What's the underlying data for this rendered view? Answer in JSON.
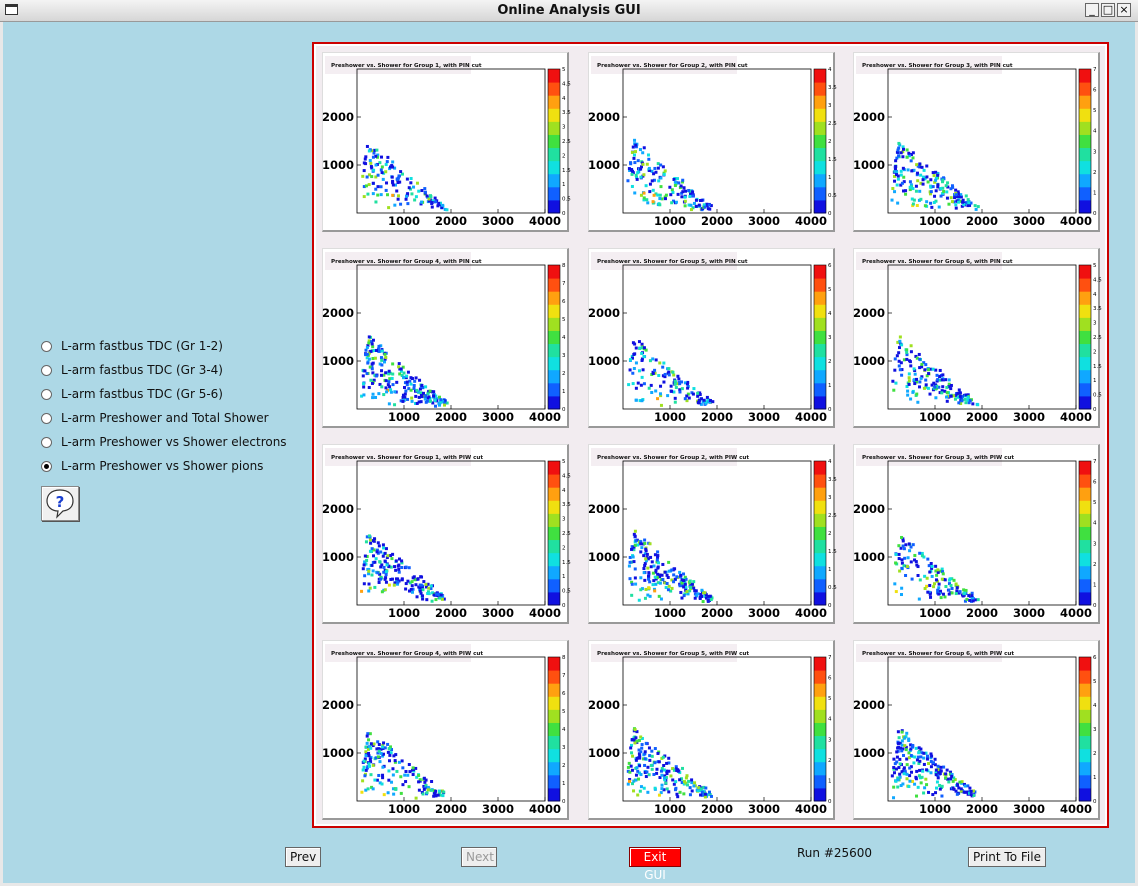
{
  "window": {
    "title": "Online Analysis GUI",
    "buttons": [
      "_",
      "□",
      "×"
    ]
  },
  "icons": {
    "window": "window-icon",
    "help": "help-question-icon"
  },
  "options": [
    {
      "label": "L-arm fastbus TDC (Gr 1-2)",
      "selected": false
    },
    {
      "label": "L-arm fastbus TDC (Gr 3-4)",
      "selected": false
    },
    {
      "label": "L-arm fastbus TDC (Gr 5-6)",
      "selected": false
    },
    {
      "label": "L-arm Preshower and Total Shower",
      "selected": false
    },
    {
      "label": "L-arm Preshower vs Shower electrons",
      "selected": false
    },
    {
      "label": "L-arm Preshower vs Shower pions",
      "selected": true
    }
  ],
  "colors": {
    "background": "#add8e6",
    "frame": "#cc0000",
    "exit": "#ff0000"
  },
  "chart_data": [
    {
      "type": "heatmap",
      "title": "Preshower vs. Shower for Group 1, with PIN cut",
      "xticks": [
        "1000",
        "2000",
        "3000",
        "4000"
      ],
      "yticks": [
        "1000",
        "2000"
      ],
      "xlim": [
        0,
        4000
      ],
      "ylim": [
        0,
        3000
      ],
      "zticks": [
        "0",
        "0.5",
        "1",
        "1.5",
        "2",
        "2.5",
        "3",
        "3.5",
        "4",
        "4.5",
        "5"
      ]
    },
    {
      "type": "heatmap",
      "title": "Preshower vs. Shower for Group 2, with PIN cut",
      "xticks": [
        "1000",
        "2000",
        "3000",
        "4000"
      ],
      "yticks": [
        "1000",
        "2000"
      ],
      "xlim": [
        0,
        4000
      ],
      "ylim": [
        0,
        3000
      ],
      "zticks": [
        "0",
        "0.5",
        "1",
        "1.5",
        "2",
        "2.5",
        "3",
        "3.5",
        "4"
      ]
    },
    {
      "type": "heatmap",
      "title": "Preshower vs. Shower for Group 3, with PIN cut",
      "xticks": [
        "1000",
        "2000",
        "3000",
        "4000"
      ],
      "yticks": [
        "1000",
        "2000"
      ],
      "xlim": [
        0,
        4000
      ],
      "ylim": [
        0,
        3000
      ],
      "zticks": [
        "0",
        "1",
        "2",
        "3",
        "4",
        "5",
        "6",
        "7"
      ]
    },
    {
      "type": "heatmap",
      "title": "Preshower vs. Shower for Group 4, with PIN cut",
      "xticks": [
        "1000",
        "2000",
        "3000",
        "4000"
      ],
      "yticks": [
        "1000",
        "2000"
      ],
      "xlim": [
        0,
        4000
      ],
      "ylim": [
        0,
        3000
      ],
      "zticks": [
        "0",
        "1",
        "2",
        "3",
        "4",
        "5",
        "6",
        "7",
        "8"
      ]
    },
    {
      "type": "heatmap",
      "title": "Preshower vs. Shower for Group 5, with PIN cut",
      "xticks": [
        "1000",
        "2000",
        "3000",
        "4000"
      ],
      "yticks": [
        "1000",
        "2000"
      ],
      "xlim": [
        0,
        4000
      ],
      "ylim": [
        0,
        3000
      ],
      "zticks": [
        "0",
        "1",
        "2",
        "3",
        "4",
        "5",
        "6"
      ]
    },
    {
      "type": "heatmap",
      "title": "Preshower vs. Shower for Group 6, with PIN cut",
      "xticks": [
        "1000",
        "2000",
        "3000",
        "4000"
      ],
      "yticks": [
        "1000",
        "2000"
      ],
      "xlim": [
        0,
        4000
      ],
      "ylim": [
        0,
        3000
      ],
      "zticks": [
        "0",
        "0.5",
        "1",
        "1.5",
        "2",
        "2.5",
        "3",
        "3.5",
        "4",
        "4.5",
        "5"
      ]
    },
    {
      "type": "heatmap",
      "title": "Preshower vs. Shower for Group 1, with PIW cut",
      "xticks": [
        "1000",
        "2000",
        "3000",
        "4000"
      ],
      "yticks": [
        "1000",
        "2000"
      ],
      "xlim": [
        0,
        4000
      ],
      "ylim": [
        0,
        3000
      ],
      "zticks": [
        "0",
        "0.5",
        "1",
        "1.5",
        "2",
        "2.5",
        "3",
        "3.5",
        "4",
        "4.5",
        "5"
      ]
    },
    {
      "type": "heatmap",
      "title": "Preshower vs. Shower for Group 2, with PIW cut",
      "xticks": [
        "1000",
        "2000",
        "3000",
        "4000"
      ],
      "yticks": [
        "1000",
        "2000"
      ],
      "xlim": [
        0,
        4000
      ],
      "ylim": [
        0,
        3000
      ],
      "zticks": [
        "0",
        "0.5",
        "1",
        "1.5",
        "2",
        "2.5",
        "3",
        "3.5",
        "4"
      ]
    },
    {
      "type": "heatmap",
      "title": "Preshower vs. Shower for Group 3, with PIW cut",
      "xticks": [
        "1000",
        "2000",
        "3000",
        "4000"
      ],
      "yticks": [
        "1000",
        "2000"
      ],
      "xlim": [
        0,
        4000
      ],
      "ylim": [
        0,
        3000
      ],
      "zticks": [
        "0",
        "1",
        "2",
        "3",
        "4",
        "5",
        "6",
        "7"
      ]
    },
    {
      "type": "heatmap",
      "title": "Preshower vs. Shower for Group 4, with PIW cut",
      "xticks": [
        "1000",
        "2000",
        "3000",
        "4000"
      ],
      "yticks": [
        "1000",
        "2000"
      ],
      "xlim": [
        0,
        4000
      ],
      "ylim": [
        0,
        3000
      ],
      "zticks": [
        "0",
        "1",
        "2",
        "3",
        "4",
        "5",
        "6",
        "7",
        "8"
      ]
    },
    {
      "type": "heatmap",
      "title": "Preshower vs. Shower for Group 5, with PIW cut",
      "xticks": [
        "1000",
        "2000",
        "3000",
        "4000"
      ],
      "yticks": [
        "1000",
        "2000"
      ],
      "xlim": [
        0,
        4000
      ],
      "ylim": [
        0,
        3000
      ],
      "zticks": [
        "0",
        "1",
        "2",
        "3",
        "4",
        "5",
        "6",
        "7"
      ]
    },
    {
      "type": "heatmap",
      "title": "Preshower vs. Shower for Group 6, with PIW cut",
      "xticks": [
        "1000",
        "2000",
        "3000",
        "4000"
      ],
      "yticks": [
        "1000",
        "2000"
      ],
      "xlim": [
        0,
        4000
      ],
      "ylim": [
        0,
        3000
      ],
      "zticks": [
        "0",
        "1",
        "2",
        "3",
        "4",
        "5",
        "6"
      ]
    }
  ],
  "buttons": {
    "prev": "Prev",
    "next": "Next",
    "exit": "Exit GUI",
    "print": "Print To File"
  },
  "run": "Run #25600"
}
